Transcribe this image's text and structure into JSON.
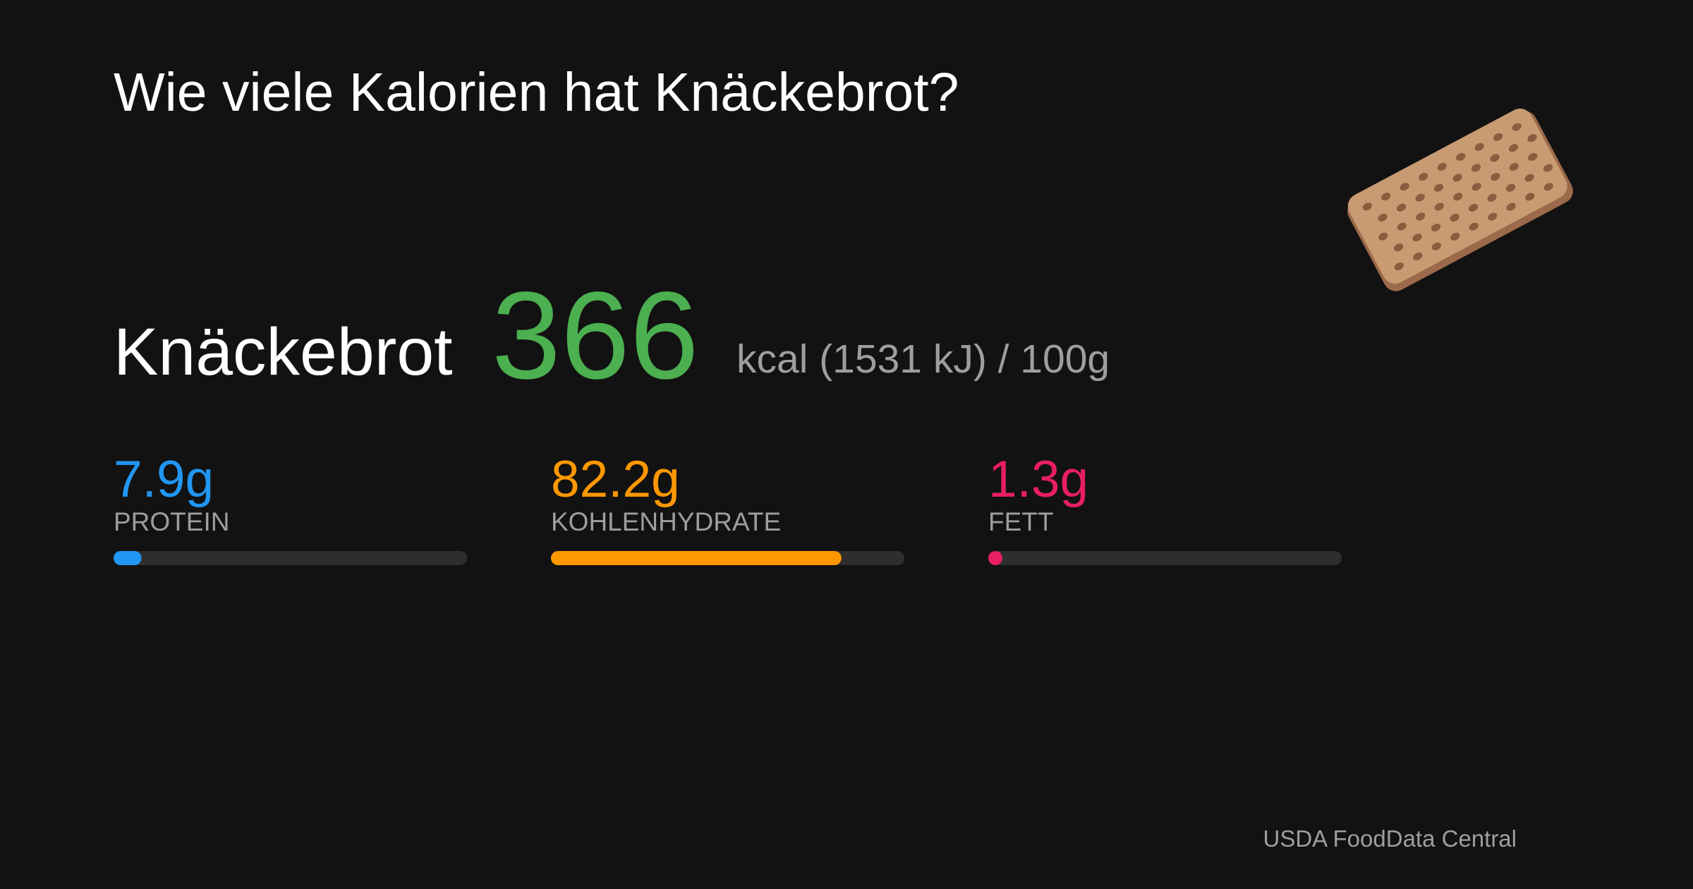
{
  "header": {
    "title": "Wie viele Kalorien hat Knäckebrot?"
  },
  "food": {
    "name": "Knäckebrot",
    "kcal": 366,
    "energy_unit": "kcal (1531 kJ) / 100g"
  },
  "macros": {
    "xlim": [
      0,
      100
    ],
    "items": [
      {
        "name": "PROTEIN",
        "value": 7.9,
        "value_label": "7.9g",
        "color": "#2196f3"
      },
      {
        "name": "KOHLENHYDRATE",
        "value": 82.2,
        "value_label": "82.2g",
        "color": "#ff9800"
      },
      {
        "name": "FETT",
        "value": 1.3,
        "value_label": "1.3g",
        "color": "#e91e63"
      }
    ]
  },
  "footer": {
    "source": "USDA FoodData Central"
  }
}
